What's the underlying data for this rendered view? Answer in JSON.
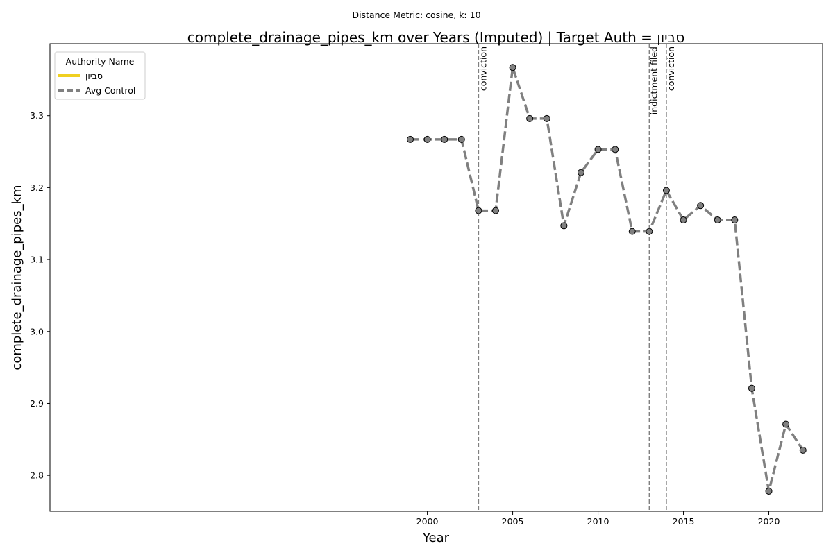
{
  "chart_data": {
    "type": "line",
    "suptitle": "Distance Metric: cosine, k: 10",
    "title": "complete_drainage_pipes_km over Years (Imputed) | Target Auth = סביון",
    "xlabel": "Year",
    "ylabel": "complete_drainage_pipes_km",
    "xlim": [
      1977.9,
      2023.15
    ],
    "ylim": [
      2.75,
      3.4
    ],
    "xticks": [
      2000,
      2005,
      2010,
      2015,
      2020
    ],
    "yticks": [
      2.8,
      2.9,
      3.0,
      3.1,
      3.2,
      3.3
    ],
    "legend": {
      "title": "Authority Name",
      "position": "upper-left",
      "entries": [
        {
          "label": "סביון",
          "color": "#f0d020",
          "style": "solid"
        },
        {
          "label": "Avg Control",
          "color": "#808080",
          "style": "dashed"
        }
      ]
    },
    "series": [
      {
        "name": "Avg Control",
        "color": "#808080",
        "style": "dashed",
        "marker": "circle",
        "x": [
          1999,
          2000,
          2001,
          2002,
          2003,
          2004,
          2005,
          2006,
          2007,
          2008,
          2009,
          2010,
          2011,
          2012,
          2013,
          2014,
          2015,
          2016,
          2017,
          2018,
          2019,
          2020,
          2021,
          2022
        ],
        "y": [
          3.267,
          3.267,
          3.267,
          3.267,
          3.168,
          3.168,
          3.367,
          3.296,
          3.296,
          3.147,
          3.221,
          3.253,
          3.253,
          3.139,
          3.139,
          3.196,
          3.155,
          3.175,
          3.155,
          3.155,
          2.921,
          2.778,
          2.871,
          2.835
        ]
      }
    ],
    "events": [
      {
        "x": 2003,
        "label": "conviction"
      },
      {
        "x": 2013,
        "label": "indictment filed"
      },
      {
        "x": 2014,
        "label": "conviction"
      }
    ],
    "grid": false
  }
}
